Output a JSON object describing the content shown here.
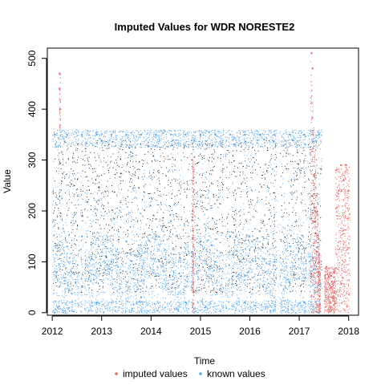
{
  "chart_data": {
    "type": "scatter",
    "title": "Imputed Values for  WDR NORESTE2",
    "xlabel": "Time",
    "ylabel": "Value",
    "xlim": [
      2011.9,
      2018.2
    ],
    "ylim": [
      -5,
      520
    ],
    "x_ticks": [
      2012,
      2013,
      2014,
      2015,
      2016,
      2017,
      2018
    ],
    "y_ticks": [
      0,
      100,
      200,
      300,
      400,
      500
    ],
    "grid": false,
    "legend_placement": "bottom",
    "colors": {
      "imputed": "#ee6666",
      "known": "#5aa8ee",
      "background_points": "#000000"
    },
    "series": [
      {
        "name": "imputed values",
        "points": [
          [
            2012.15,
            470
          ],
          [
            2012.15,
            440
          ],
          [
            2012.16,
            400
          ],
          [
            2014.83,
            300
          ],
          [
            2014.84,
            200
          ],
          [
            2014.85,
            100
          ],
          [
            2014.86,
            40
          ],
          [
            2017.25,
            510
          ],
          [
            2017.27,
            480
          ],
          [
            2017.28,
            350
          ],
          [
            2017.3,
            270
          ],
          [
            2017.32,
            200
          ],
          [
            2017.35,
            120
          ],
          [
            2017.38,
            80
          ],
          [
            2017.55,
            90
          ],
          [
            2017.6,
            70
          ],
          [
            2017.65,
            50
          ],
          [
            2017.7,
            80
          ],
          [
            2017.75,
            280
          ],
          [
            2017.8,
            240
          ],
          [
            2017.85,
            290
          ],
          [
            2017.9,
            260
          ],
          [
            2017.95,
            290
          ],
          [
            2018.0,
            240
          ]
        ]
      },
      {
        "name": "known values",
        "points": [
          [
            2012.05,
            350
          ],
          [
            2012.05,
            0
          ],
          [
            2012.3,
            350
          ],
          [
            2012.3,
            130
          ],
          [
            2012.6,
            350
          ],
          [
            2012.6,
            150
          ],
          [
            2012.9,
            350
          ],
          [
            2012.9,
            20
          ],
          [
            2013.2,
            350
          ],
          [
            2013.2,
            100
          ],
          [
            2013.5,
            350
          ],
          [
            2013.5,
            140
          ],
          [
            2013.8,
            350
          ],
          [
            2013.8,
            30
          ],
          [
            2014.1,
            350
          ],
          [
            2014.1,
            150
          ],
          [
            2014.4,
            350
          ],
          [
            2014.4,
            180
          ],
          [
            2014.7,
            350
          ],
          [
            2014.7,
            20
          ],
          [
            2015.0,
            350
          ],
          [
            2015.0,
            140
          ],
          [
            2015.3,
            350
          ],
          [
            2015.3,
            100
          ],
          [
            2015.6,
            350
          ],
          [
            2015.6,
            150
          ],
          [
            2015.9,
            350
          ],
          [
            2015.9,
            20
          ],
          [
            2016.2,
            350
          ],
          [
            2016.2,
            160
          ],
          [
            2016.5,
            350
          ],
          [
            2016.5,
            100
          ],
          [
            2016.8,
            350
          ],
          [
            2016.8,
            60
          ],
          [
            2017.1,
            350
          ],
          [
            2017.1,
            20
          ],
          [
            2017.4,
            350
          ],
          [
            2017.4,
            0
          ]
        ]
      }
    ]
  },
  "legend": {
    "items": [
      {
        "label": "imputed values",
        "color": "#ee6666"
      },
      {
        "label": "known values",
        "color": "#5aa8ee"
      }
    ]
  }
}
